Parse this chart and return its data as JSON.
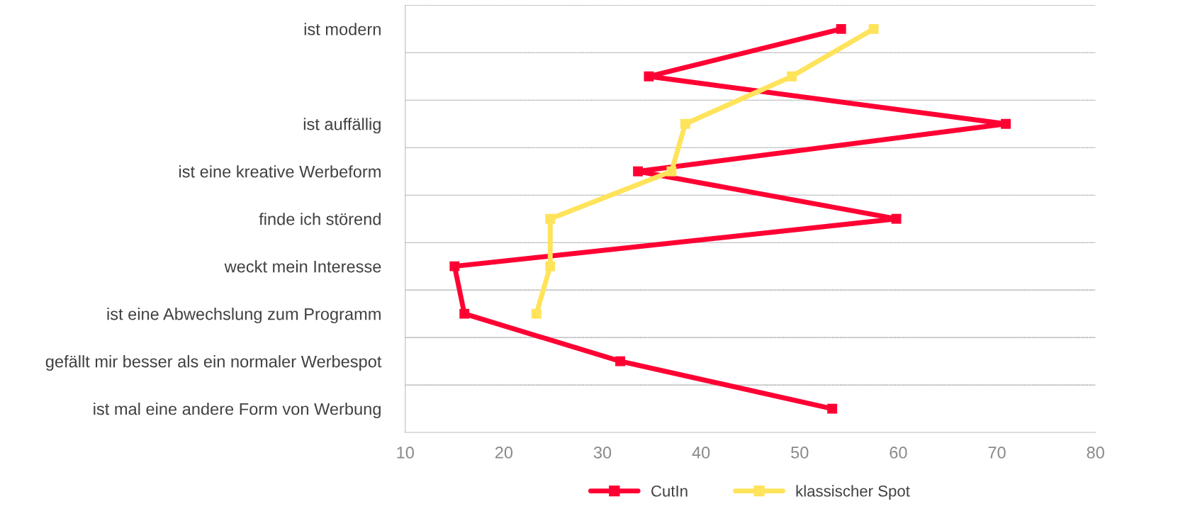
{
  "chart_data": {
    "type": "line",
    "orientation": "horizontal",
    "categories": [
      "ist modern",
      null,
      "ist auffällig",
      "ist eine kreative Werbeform",
      "finde ich störend",
      "weckt mein Interesse",
      "ist eine Abwechslung zum Programm",
      "gefällt mir besser als ein normaler Werbespot",
      "ist mal eine andere Form von Werbung"
    ],
    "series": [
      {
        "name": "CutIn",
        "color": "#ff0033",
        "values": [
          54.2,
          34.7,
          70.9,
          33.6,
          59.8,
          15.0,
          16.0,
          31.8,
          53.3
        ]
      },
      {
        "name": "klassischer Spot",
        "color": "#ffe35a",
        "values": [
          57.5,
          49.2,
          38.4,
          37.0,
          24.7,
          24.7,
          23.3,
          null,
          null
        ]
      }
    ],
    "xlim": [
      10,
      80
    ],
    "xticks": [
      10,
      20,
      30,
      40,
      50,
      60,
      70,
      80
    ],
    "grid": "y",
    "legend": "bottom",
    "marker": "square",
    "line_style": "solid"
  }
}
